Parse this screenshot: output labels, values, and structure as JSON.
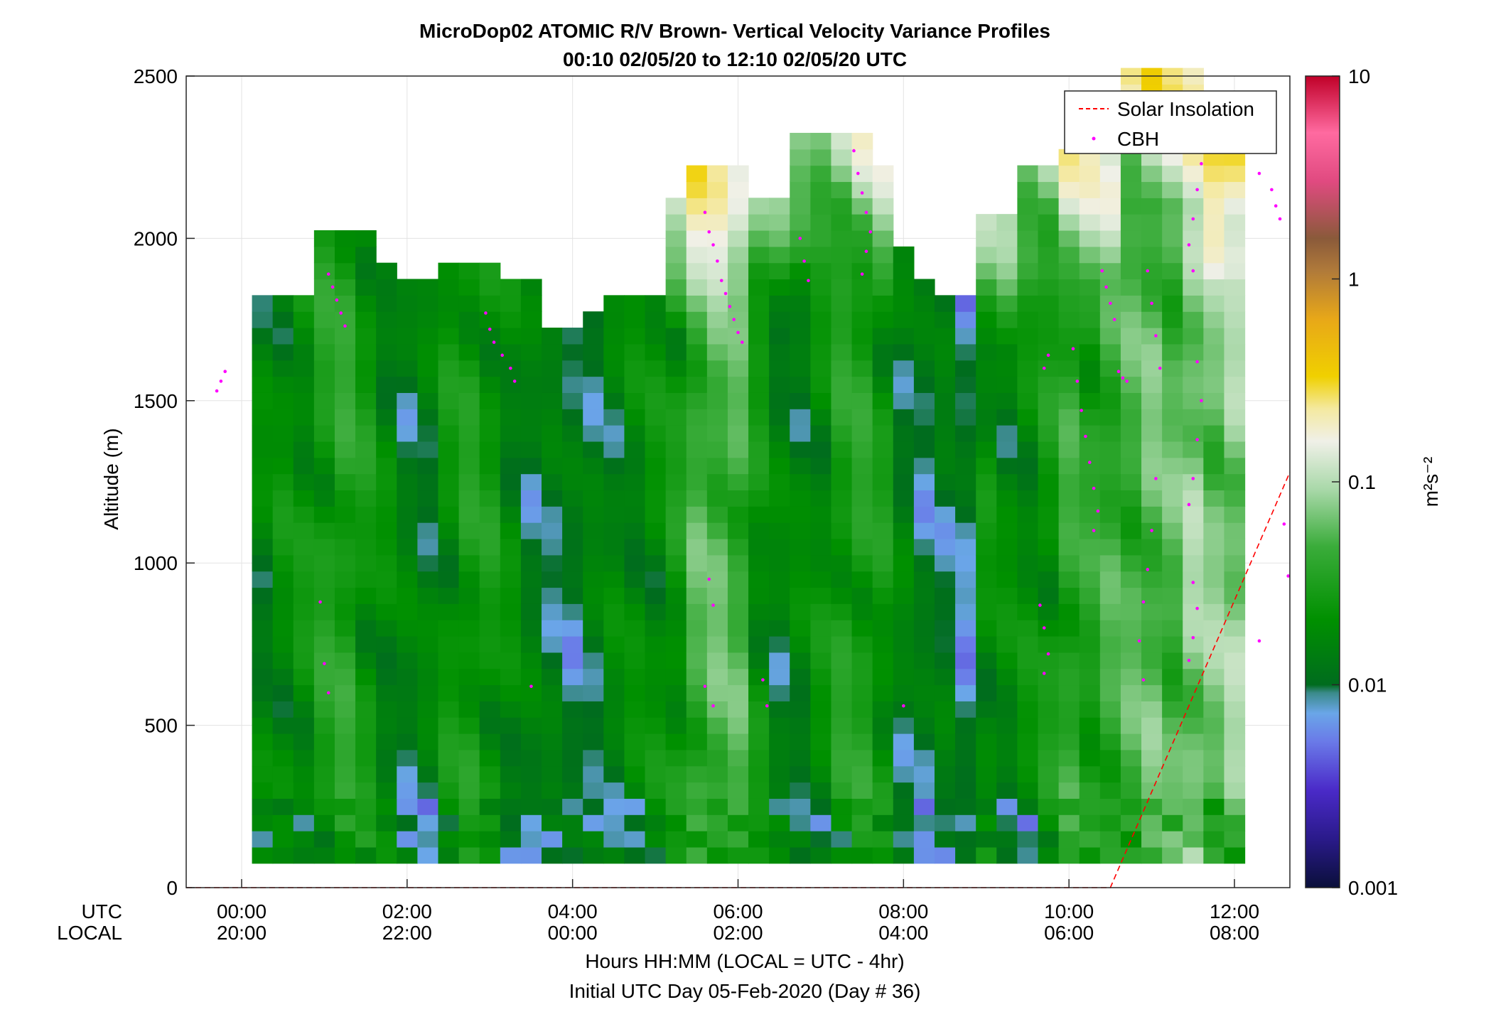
{
  "chart_data": {
    "type": "heatmap",
    "title": "MicroDop02 ATOMIC R/V Brown- Vertical Velocity Variance Profiles",
    "subtitle": "00:10 02/05/20 to 12:10 02/05/20  UTC",
    "ylabel": "Altitude (m)",
    "xlabel": "Hours HH:MM  (LOCAL = UTC - 4hr)",
    "xlabel2": "Initial UTC Day 05-Feb-2020 (Day # 36)",
    "xlim_hours": [
      -0.67,
      12.67
    ],
    "ylim": [
      0,
      2500
    ],
    "y_ticks": [
      "0",
      "500",
      "1000",
      "1500",
      "2000",
      "2500"
    ],
    "y_tick_values": [
      0,
      500,
      1000,
      1500,
      2000,
      2500
    ],
    "x_row1_label": "UTC",
    "x_row2_label": "LOCAL",
    "x_tick_hours": [
      0,
      2,
      4,
      6,
      8,
      10,
      12
    ],
    "x_ticks_utc": [
      "00:00",
      "02:00",
      "04:00",
      "06:00",
      "08:00",
      "10:00",
      "12:00"
    ],
    "x_ticks_local": [
      "20:00",
      "22:00",
      "00:00",
      "02:00",
      "04:00",
      "06:00",
      "08:00"
    ],
    "colorbar": {
      "scale": "log",
      "range": [
        0.001,
        10
      ],
      "ticks": [
        "0.001",
        "0.01",
        "0.1",
        "1",
        "10"
      ],
      "tick_values": [
        0.001,
        0.01,
        0.1,
        1,
        10
      ],
      "label": "m²s⁻²"
    },
    "legend": {
      "position": "top-right",
      "entries": [
        {
          "label": "Solar Insolation",
          "color": "#ff0000",
          "style": "dashed"
        },
        {
          "label": "CBH",
          "color": "#ff00ff",
          "style": "dot"
        }
      ]
    },
    "grid": true,
    "profiles": [
      {
        "t": 0.25,
        "top": 1780,
        "base": 0.016
      },
      {
        "t": 0.5,
        "top": 1800,
        "base": 0.02
      },
      {
        "t": 0.75,
        "top": 1820,
        "base": 0.022
      },
      {
        "t": 1.0,
        "top": 2000,
        "base": 0.03
      },
      {
        "t": 1.25,
        "top": 2000,
        "base": 0.035
      },
      {
        "t": 1.5,
        "top": 1990,
        "base": 0.025
      },
      {
        "t": 1.75,
        "top": 1920,
        "base": 0.018
      },
      {
        "t": 2.0,
        "top": 1850,
        "base": 0.014
      },
      {
        "t": 2.25,
        "top": 1860,
        "base": 0.014
      },
      {
        "t": 2.5,
        "top": 1880,
        "base": 0.022
      },
      {
        "t": 2.75,
        "top": 1880,
        "base": 0.028
      },
      {
        "t": 3.0,
        "top": 1880,
        "base": 0.025
      },
      {
        "t": 3.25,
        "top": 1850,
        "base": 0.018
      },
      {
        "t": 3.5,
        "top": 1850,
        "base": 0.013
      },
      {
        "t": 3.75,
        "top": 1720,
        "base": 0.012
      },
      {
        "t": 4.0,
        "top": 1680,
        "base": 0.011
      },
      {
        "t": 4.25,
        "top": 1760,
        "base": 0.013
      },
      {
        "t": 4.5,
        "top": 1780,
        "base": 0.016
      },
      {
        "t": 4.75,
        "top": 1780,
        "base": 0.018
      },
      {
        "t": 5.0,
        "top": 1790,
        "base": 0.02
      },
      {
        "t": 5.25,
        "top": 2090,
        "base": 0.025
      },
      {
        "t": 5.5,
        "top": 2180,
        "base": 0.05
      },
      {
        "t": 5.75,
        "top": 2180,
        "base": 0.055
      },
      {
        "t": 6.0,
        "top": 2180,
        "base": 0.05
      },
      {
        "t": 6.25,
        "top": 2120,
        "base": 0.022
      },
      {
        "t": 6.5,
        "top": 2100,
        "base": 0.015
      },
      {
        "t": 6.75,
        "top": 2290,
        "base": 0.016
      },
      {
        "t": 7.0,
        "top": 2320,
        "base": 0.02
      },
      {
        "t": 7.25,
        "top": 2320,
        "base": 0.03
      },
      {
        "t": 7.5,
        "top": 2290,
        "base": 0.032
      },
      {
        "t": 7.75,
        "top": 2200,
        "base": 0.025
      },
      {
        "t": 8.0,
        "top": 1950,
        "base": 0.014
      },
      {
        "t": 8.25,
        "top": 1850,
        "base": 0.011
      },
      {
        "t": 8.5,
        "top": 1820,
        "base": 0.012
      },
      {
        "t": 8.75,
        "top": 1780,
        "base": 0.009
      },
      {
        "t": 9.0,
        "top": 2050,
        "base": 0.02
      },
      {
        "t": 9.25,
        "top": 2050,
        "base": 0.018
      },
      {
        "t": 9.5,
        "top": 2220,
        "base": 0.02
      },
      {
        "t": 9.75,
        "top": 2220,
        "base": 0.025
      },
      {
        "t": 10.0,
        "top": 2230,
        "base": 0.04
      },
      {
        "t": 10.25,
        "top": 2230,
        "base": 0.035
      },
      {
        "t": 10.5,
        "top": 2280,
        "base": 0.045
      },
      {
        "t": 10.75,
        "top": 2500,
        "base": 0.05
      },
      {
        "t": 11.0,
        "top": 2500,
        "base": 0.06
      },
      {
        "t": 11.25,
        "top": 2500,
        "base": 0.055
      },
      {
        "t": 11.5,
        "top": 2500,
        "base": 0.08
      },
      {
        "t": 11.75,
        "top": 2240,
        "base": 0.07
      },
      {
        "t": 12.0,
        "top": 2240,
        "base": 0.08
      }
    ],
    "cbh_points": [
      [
        -0.3,
        1530
      ],
      [
        -0.25,
        1560
      ],
      [
        -0.2,
        1590
      ],
      [
        1.05,
        1890
      ],
      [
        1.1,
        1850
      ],
      [
        1.15,
        1810
      ],
      [
        1.2,
        1770
      ],
      [
        1.25,
        1730
      ],
      [
        0.95,
        880
      ],
      [
        1.0,
        690
      ],
      [
        1.05,
        600
      ],
      [
        2.95,
        1770
      ],
      [
        3.0,
        1720
      ],
      [
        3.05,
        1680
      ],
      [
        3.15,
        1640
      ],
      [
        3.25,
        1600
      ],
      [
        3.3,
        1560
      ],
      [
        3.5,
        620
      ],
      [
        5.6,
        2080
      ],
      [
        5.65,
        2020
      ],
      [
        5.7,
        1980
      ],
      [
        5.75,
        1930
      ],
      [
        5.8,
        1870
      ],
      [
        5.85,
        1830
      ],
      [
        5.9,
        1790
      ],
      [
        5.95,
        1750
      ],
      [
        6.0,
        1710
      ],
      [
        6.05,
        1680
      ],
      [
        5.65,
        950
      ],
      [
        5.7,
        870
      ],
      [
        5.6,
        620
      ],
      [
        5.7,
        560
      ],
      [
        6.3,
        640
      ],
      [
        6.35,
        560
      ],
      [
        6.75,
        2000
      ],
      [
        6.8,
        1930
      ],
      [
        6.85,
        1870
      ],
      [
        7.4,
        2270
      ],
      [
        7.45,
        2200
      ],
      [
        7.5,
        2140
      ],
      [
        7.55,
        2080
      ],
      [
        7.6,
        2020
      ],
      [
        7.55,
        1960
      ],
      [
        7.5,
        1890
      ],
      [
        8.0,
        560
      ],
      [
        9.75,
        1640
      ],
      [
        9.7,
        1600
      ],
      [
        9.65,
        870
      ],
      [
        9.7,
        800
      ],
      [
        9.75,
        720
      ],
      [
        9.7,
        660
      ],
      [
        10.05,
        1660
      ],
      [
        10.1,
        1560
      ],
      [
        10.15,
        1470
      ],
      [
        10.2,
        1390
      ],
      [
        10.25,
        1310
      ],
      [
        10.3,
        1230
      ],
      [
        10.35,
        1160
      ],
      [
        10.3,
        1100
      ],
      [
        10.6,
        1590
      ],
      [
        10.65,
        1570
      ],
      [
        10.7,
        1560
      ],
      [
        10.4,
        1900
      ],
      [
        10.45,
        1850
      ],
      [
        10.5,
        1800
      ],
      [
        10.55,
        1750
      ],
      [
        10.95,
        1900
      ],
      [
        11.0,
        1800
      ],
      [
        11.05,
        1700
      ],
      [
        11.1,
        1600
      ],
      [
        11.05,
        1260
      ],
      [
        11.0,
        1100
      ],
      [
        10.95,
        980
      ],
      [
        10.9,
        880
      ],
      [
        10.85,
        760
      ],
      [
        10.9,
        640
      ],
      [
        11.6,
        2230
      ],
      [
        11.55,
        2150
      ],
      [
        11.5,
        2060
      ],
      [
        11.45,
        1980
      ],
      [
        11.5,
        1900
      ],
      [
        11.55,
        1620
      ],
      [
        11.6,
        1500
      ],
      [
        11.55,
        1380
      ],
      [
        11.5,
        1260
      ],
      [
        11.45,
        1180
      ],
      [
        11.5,
        940
      ],
      [
        11.55,
        860
      ],
      [
        11.5,
        770
      ],
      [
        11.45,
        700
      ],
      [
        12.2,
        2270
      ],
      [
        12.3,
        2200
      ],
      [
        12.45,
        2150
      ],
      [
        12.5,
        2100
      ],
      [
        12.55,
        2060
      ],
      [
        12.6,
        1120
      ],
      [
        12.65,
        960
      ],
      [
        12.3,
        760
      ]
    ],
    "solar_insolation_line": [
      [
        -0.67,
        0
      ],
      [
        10.5,
        0
      ],
      [
        12.67,
        1280
      ]
    ]
  }
}
